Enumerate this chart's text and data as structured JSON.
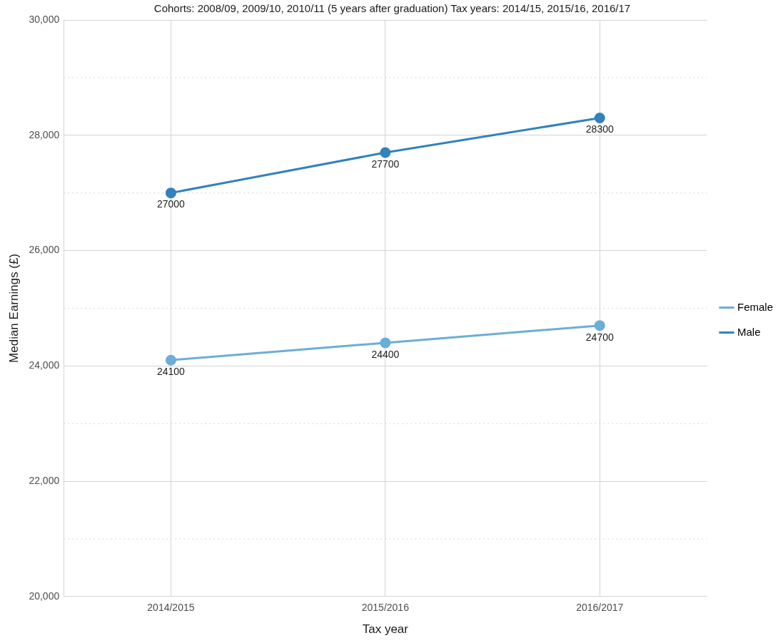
{
  "chart_data": {
    "type": "line",
    "subtitle": "Cohorts: 2008/09, 2009/10, 2010/11 (5 years after graduation) Tax years: 2014/15, 2015/16, 2016/17",
    "xlabel": "Tax year",
    "ylabel": "Median Earnings (£)",
    "categories": [
      "2014/2015",
      "2015/2016",
      "2016/2017"
    ],
    "series": [
      {
        "name": "Female",
        "color": "#6baed6",
        "values": [
          24100,
          24400,
          24700
        ]
      },
      {
        "name": "Male",
        "color": "#3182bd",
        "values": [
          27000,
          27700,
          28300
        ]
      }
    ],
    "ylim": [
      20000,
      30000
    ],
    "yticks": [
      {
        "value": 20000,
        "label": "20,000"
      },
      {
        "value": 21000,
        "label": null
      },
      {
        "value": 22000,
        "label": "22,000"
      },
      {
        "value": 23000,
        "label": null
      },
      {
        "value": 24000,
        "label": "24,000"
      },
      {
        "value": 25000,
        "label": null
      },
      {
        "value": 26000,
        "label": "26,000"
      },
      {
        "value": 27000,
        "label": null
      },
      {
        "value": 28000,
        "label": "28,000"
      },
      {
        "value": 29000,
        "label": null
      },
      {
        "value": 30000,
        "label": "30,000"
      }
    ],
    "grid": true,
    "legend": "right",
    "marker": "circle",
    "line_style": "solid",
    "data_labels": true
  }
}
